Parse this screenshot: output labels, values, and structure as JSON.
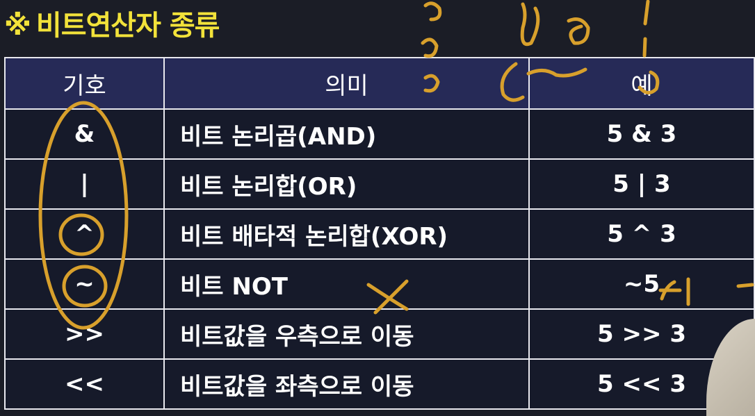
{
  "title": {
    "mark": "※",
    "text": "비트연산자 종류"
  },
  "table": {
    "headers": {
      "symbol": "기호",
      "meaning": "의미",
      "example": "예"
    },
    "rows": [
      {
        "symbol": "&",
        "meaning": "비트 논리곱(AND)",
        "example": "5 & 3"
      },
      {
        "symbol": "|",
        "meaning": "비트 논리합(OR)",
        "example": "5 | 3"
      },
      {
        "symbol": "^",
        "meaning": "비트 배타적 논리합(XOR)",
        "example": "5 ^ 3"
      },
      {
        "symbol": "~",
        "meaning": "비트 NOT",
        "example": "~5"
      },
      {
        "symbol": ">>",
        "meaning": "비트값을 우측으로 이동",
        "example": "5 >> 3"
      },
      {
        "symbol": "<<",
        "meaning": "비트값을 좌측으로 이동",
        "example": "5 << 3"
      }
    ]
  },
  "colors": {
    "title": "#f2e23a",
    "ink": "#d8a02c",
    "header_bg": "#262a57",
    "body_bg": "#161a2a"
  }
}
